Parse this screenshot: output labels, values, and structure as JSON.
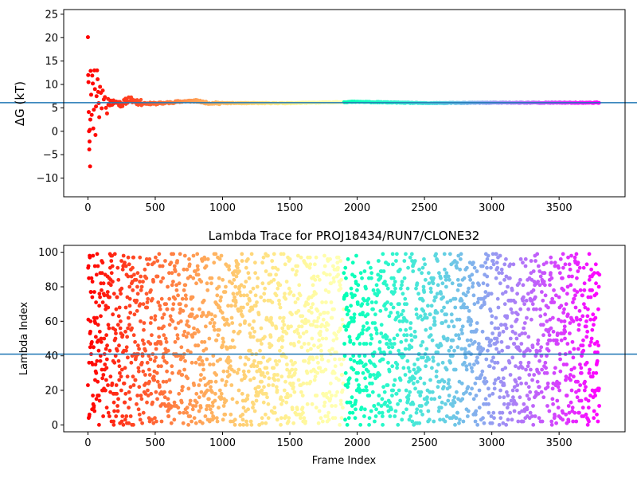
{
  "chart_data": [
    {
      "type": "scatter",
      "title": "",
      "xlabel": "",
      "ylabel": "ΔG (kT)",
      "xlim": [
        -180,
        3990
      ],
      "ylim": [
        -14,
        26
      ],
      "xticks": [
        0,
        500,
        1000,
        1500,
        2000,
        2500,
        3000,
        3500
      ],
      "yticks": [
        -10,
        -5,
        0,
        5,
        10,
        15,
        20,
        25
      ],
      "grid": false,
      "colormap": "rainbow (red → violet with frame index)",
      "hline": {
        "y": 6.1,
        "color": "#1f77b4"
      },
      "frames": 3800,
      "early_points": [
        {
          "x": 0,
          "y": 20.1
        },
        {
          "x": 2,
          "y": 12.0
        },
        {
          "x": 4,
          "y": 10.5
        },
        {
          "x": 6,
          "y": 4.1
        },
        {
          "x": 8,
          "y": 0.0
        },
        {
          "x": 10,
          "y": -3.9
        },
        {
          "x": 12,
          "y": -2.2
        },
        {
          "x": 14,
          "y": 0.3
        },
        {
          "x": 16,
          "y": -7.5
        },
        {
          "x": 18,
          "y": 2.5
        },
        {
          "x": 20,
          "y": 12.9
        },
        {
          "x": 24,
          "y": 7.8
        },
        {
          "x": 28,
          "y": 3.5
        },
        {
          "x": 32,
          "y": 11.9
        },
        {
          "x": 36,
          "y": 10.2
        },
        {
          "x": 40,
          "y": 0.6
        },
        {
          "x": 44,
          "y": 4.6
        },
        {
          "x": 48,
          "y": 13.0
        },
        {
          "x": 52,
          "y": 9.0
        },
        {
          "x": 56,
          "y": -0.8
        },
        {
          "x": 60,
          "y": 5.3
        },
        {
          "x": 64,
          "y": 7.5
        },
        {
          "x": 68,
          "y": 13.0
        },
        {
          "x": 72,
          "y": 11.1
        },
        {
          "x": 76,
          "y": 8.4
        },
        {
          "x": 80,
          "y": 6.0
        },
        {
          "x": 84,
          "y": 3.0
        },
        {
          "x": 90,
          "y": 9.5
        },
        {
          "x": 96,
          "y": 8.2
        },
        {
          "x": 102,
          "y": 4.9
        },
        {
          "x": 110,
          "y": 8.7
        },
        {
          "x": 118,
          "y": 6.8
        },
        {
          "x": 126,
          "y": 7.3
        },
        {
          "x": 134,
          "y": 5.0
        },
        {
          "x": 142,
          "y": 3.8
        },
        {
          "x": 150,
          "y": 6.9
        }
      ],
      "mid_trend": [
        {
          "x": 150,
          "y": 6.0
        },
        {
          "x": 200,
          "y": 6.3
        },
        {
          "x": 250,
          "y": 5.8
        },
        {
          "x": 300,
          "y": 6.8
        },
        {
          "x": 350,
          "y": 6.5
        },
        {
          "x": 400,
          "y": 6.0
        },
        {
          "x": 500,
          "y": 5.9
        },
        {
          "x": 600,
          "y": 6.1
        },
        {
          "x": 700,
          "y": 6.4
        },
        {
          "x": 800,
          "y": 6.5
        },
        {
          "x": 900,
          "y": 6.0
        },
        {
          "x": 1000,
          "y": 6.0
        },
        {
          "x": 1500,
          "y": 6.0
        },
        {
          "x": 2000,
          "y": 6.3
        },
        {
          "x": 2500,
          "y": 6.0
        },
        {
          "x": 3000,
          "y": 6.1
        },
        {
          "x": 3800,
          "y": 6.1
        }
      ]
    },
    {
      "type": "scatter",
      "title": "Lambda Trace for PROJ18434/RUN7/CLONE32",
      "xlabel": "Frame Index",
      "ylabel": "Lambda Index",
      "xlim": [
        -180,
        3990
      ],
      "ylim": [
        -4,
        104
      ],
      "xticks": [
        0,
        500,
        1000,
        1500,
        2000,
        2500,
        3000,
        3500
      ],
      "yticks": [
        0,
        20,
        40,
        60,
        80,
        100
      ],
      "grid": false,
      "colormap": "rainbow (red → violet with frame index)",
      "hline": {
        "y": 41,
        "color": "#1f77b4"
      },
      "frames": 3800,
      "lambda_range": [
        0,
        99
      ]
    }
  ]
}
